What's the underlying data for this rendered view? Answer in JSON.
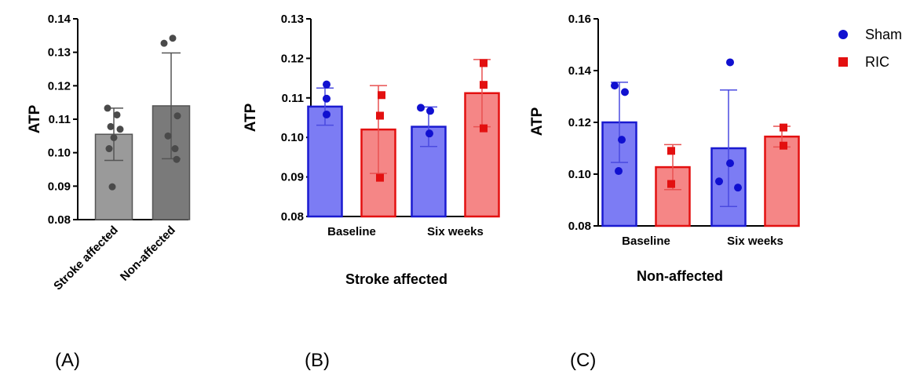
{
  "chart_data": [
    {
      "type": "bar",
      "panel_label": "(A)",
      "ylabel": "ATP",
      "xlabel": "",
      "ylim": [
        0.08,
        0.14
      ],
      "yticks": [
        "0.08",
        "0.09",
        "0.10",
        "0.11",
        "0.12",
        "0.13",
        "0.14"
      ],
      "categories": [
        "Stroke affected",
        "Non-affected"
      ],
      "values": [
        0.1055,
        0.114
      ],
      "sd": [
        0.0078,
        0.0158
      ],
      "points": [
        [
          0.1133,
          0.1113,
          0.1078,
          0.107,
          0.1045,
          0.1012,
          0.0898
        ],
        [
          0.1342,
          0.1327,
          0.111,
          0.105,
          0.1012,
          0.098
        ]
      ],
      "colors": [
        "#9a9a9a",
        "#7a7a7a"
      ]
    },
    {
      "type": "bar",
      "panel_label": "(B)",
      "ylabel": "ATP",
      "xlabel": "Stroke affected",
      "ylim": [
        0.08,
        0.13
      ],
      "yticks": [
        "0.08",
        "0.09",
        "0.10",
        "0.11",
        "0.12",
        "0.13"
      ],
      "categories": [
        "Baseline",
        "Six weeks"
      ],
      "series": [
        {
          "name": "Sham",
          "values": [
            0.1078,
            0.1027
          ],
          "sd": [
            0.0047,
            0.005
          ],
          "points": [
            [
              0.1134,
              0.1098,
              0.1058
            ],
            [
              0.1075,
              0.1067,
              0.101
            ]
          ]
        },
        {
          "name": "RIC",
          "values": [
            0.102,
            0.1112
          ],
          "sd": [
            0.0111,
            0.0085
          ],
          "points": [
            [
              0.1107,
              0.1055,
              0.0898
            ],
            [
              0.1188,
              0.1133,
              0.1023
            ]
          ]
        }
      ]
    },
    {
      "type": "bar",
      "panel_label": "(C)",
      "ylabel": "ATP",
      "xlabel": "Non-affected",
      "ylim": [
        0.08,
        0.16
      ],
      "yticks": [
        "0.08",
        "0.10",
        "0.12",
        "0.14",
        "0.16"
      ],
      "categories": [
        "Baseline",
        "Six weeks"
      ],
      "series": [
        {
          "name": "Sham",
          "values": [
            0.12,
            0.11
          ],
          "sd": [
            0.0155,
            0.0225
          ],
          "points": [
            [
              0.1342,
              0.1317,
              0.1133,
              0.1012
            ],
            [
              0.1432,
              0.1042,
              0.0972,
              0.0948
            ]
          ]
        },
        {
          "name": "RIC",
          "values": [
            0.1027,
            0.1145
          ],
          "sd": [
            0.0087,
            0.004
          ],
          "points": [
            [
              0.109,
              0.0962
            ],
            [
              0.118,
              0.111
            ]
          ]
        }
      ]
    }
  ],
  "legend": {
    "position": "top-right",
    "items": [
      {
        "label": "Sham",
        "marker": "circle",
        "color": "#1010d0"
      },
      {
        "label": "RIC",
        "marker": "square",
        "color": "#e31010"
      }
    ]
  },
  "colors": {
    "sham_fill": "#7c7cf4",
    "sham_edge": "#1a1ad0",
    "sham_point": "#1010d0",
    "ric_fill": "#f58686",
    "ric_edge": "#e31010",
    "ric_point": "#e31010",
    "err_sham": "#4a4ae0",
    "err_ric": "#e85050",
    "point_gray": "#4a4a4a"
  }
}
